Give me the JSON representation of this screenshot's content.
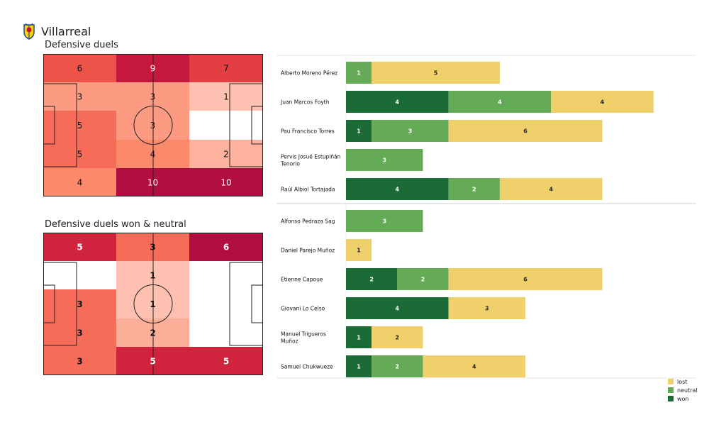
{
  "team": {
    "name": "Villarreal",
    "logo_icon": "villarreal-crest-icon"
  },
  "colors": {
    "won": "#1b6b36",
    "neutral": "#65ab57",
    "lost": "#f0d06a",
    "pitch_line": "#222222"
  },
  "chart_data": [
    {
      "type": "heatmap",
      "title": "Defensive duels",
      "values": [
        [
          6,
          9,
          7
        ],
        [
          3,
          3,
          1
        ],
        [
          5,
          3,
          null
        ],
        [
          5,
          4,
          2
        ],
        [
          4,
          10,
          10
        ]
      ],
      "colors": [
        [
          "#ee5349",
          "#c4183d",
          "#e43e45"
        ],
        [
          "#fc9b81",
          "#fc9b81",
          "#fdc0b1"
        ],
        [
          "#f66c59",
          "#fc9b81",
          "#ffffff"
        ],
        [
          "#f66c59",
          "#fb8a6c",
          "#fdb29e"
        ],
        [
          "#fb8a6c",
          "#b00e40",
          "#b00e40"
        ]
      ],
      "labels_bold": false,
      "label_color": "#111111",
      "label_color_dark": "#ffffff"
    },
    {
      "type": "heatmap",
      "title": "Defensive duels won & neutral",
      "values": [
        [
          5,
          3,
          6
        ],
        [
          null,
          1,
          null
        ],
        [
          3,
          1,
          null
        ],
        [
          3,
          2,
          null
        ],
        [
          3,
          5,
          5
        ]
      ],
      "colors": [
        [
          "#d0233e",
          "#f66c59",
          "#b00e40"
        ],
        [
          "#ffffff",
          "#fdc0b1",
          "#ffffff"
        ],
        [
          "#f66c59",
          "#fdc0b1",
          "#ffffff"
        ],
        [
          "#f66c59",
          "#fdae99",
          "#ffffff"
        ],
        [
          "#f66c59",
          "#d0233e",
          "#d0233e"
        ]
      ],
      "labels_bold": true,
      "label_color": "#111111",
      "label_color_dark": "#ffffff"
    },
    {
      "type": "bar",
      "orientation": "horizontal",
      "stacked": true,
      "categories": [
        "Alberto Moreno Pérez",
        "Juan Marcos Foyth",
        "Pau Francisco Torres",
        "Pervis Josué Estupiñán Tenorio",
        "Raúl Albiol Tortajada",
        "Alfonso Pedraza Sag",
        "Daniel Parejo Muñoz",
        "Etienne Capoue",
        "Giovani Lo Celso",
        "Manuel Trigueros Muñoz",
        "Samuel Chukwueze"
      ],
      "series": [
        {
          "name": "won",
          "values": [
            0,
            4,
            1,
            0,
            4,
            0,
            0,
            2,
            4,
            1,
            1
          ]
        },
        {
          "name": "neutral",
          "values": [
            1,
            4,
            3,
            3,
            2,
            3,
            0,
            2,
            0,
            0,
            2
          ]
        },
        {
          "name": "lost",
          "values": [
            5,
            4,
            6,
            0,
            4,
            0,
            1,
            6,
            3,
            2,
            4
          ]
        }
      ],
      "xlim": [
        0,
        13
      ],
      "legend": "bottom-right"
    }
  ]
}
